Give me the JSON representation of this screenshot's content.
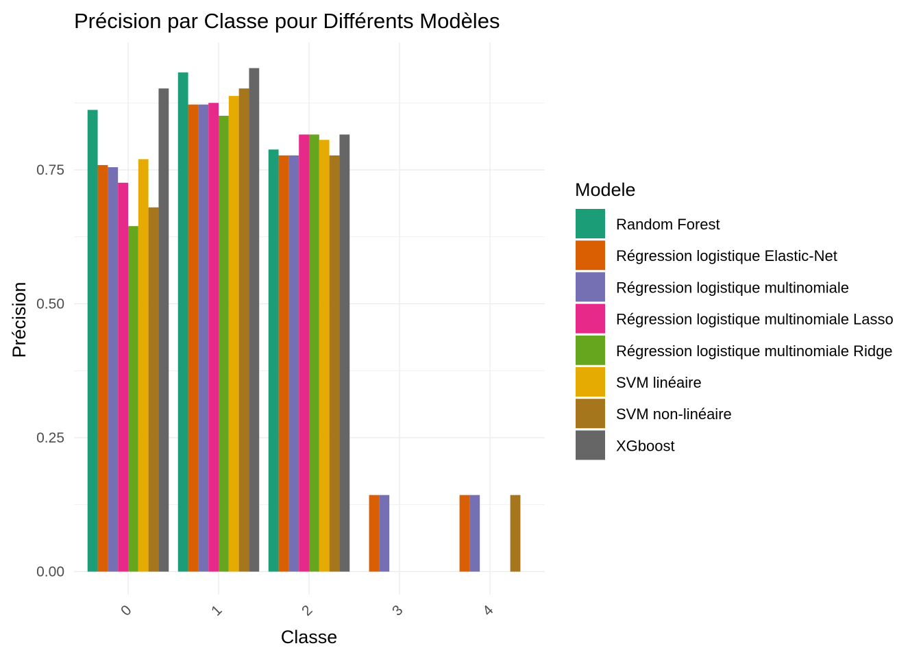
{
  "chart_data": {
    "type": "bar",
    "title": "Précision par Classe pour Différents Modèles",
    "xlabel": "Classe",
    "ylabel": "Précision",
    "categories": [
      "0",
      "1",
      "2",
      "3",
      "4"
    ],
    "ylim": [
      0,
      0.97
    ],
    "yticks": [
      0,
      0.25,
      0.5,
      0.75
    ],
    "ytick_labels": [
      "0.00",
      "0.25",
      "0.50",
      "0.75"
    ],
    "grid": true,
    "legend_title": "Modele",
    "legend_position": "right",
    "series": [
      {
        "name": "Random Forest",
        "color": "#1B9E77",
        "values": [
          0.862,
          0.932,
          0.788,
          0,
          0
        ]
      },
      {
        "name": "Régression logistique Elastic-Net",
        "color": "#D95F02",
        "values": [
          0.759,
          0.872,
          0.777,
          0.143,
          0.143
        ]
      },
      {
        "name": "Régression logistique multinomiale",
        "color": "#7570B3",
        "values": [
          0.755,
          0.872,
          0.777,
          0.143,
          0.143
        ]
      },
      {
        "name": "Régression logistique multinomiale Lasso",
        "color": "#E7298A",
        "values": [
          0.726,
          0.875,
          0.816,
          0,
          0
        ]
      },
      {
        "name": "Régression logistique multinomiale Ridge",
        "color": "#66A61E",
        "values": [
          0.645,
          0.851,
          0.816,
          0,
          0
        ]
      },
      {
        "name": "SVM linéaire",
        "color": "#E6AB02",
        "values": [
          0.77,
          0.888,
          0.806,
          0,
          0
        ]
      },
      {
        "name": "SVM non-linéaire",
        "color": "#A6761D",
        "values": [
          0.68,
          0.902,
          0.777,
          0,
          0.143
        ]
      },
      {
        "name": "XGboost",
        "color": "#666666",
        "values": [
          0.902,
          0.94,
          0.816,
          0,
          0
        ]
      }
    ]
  }
}
